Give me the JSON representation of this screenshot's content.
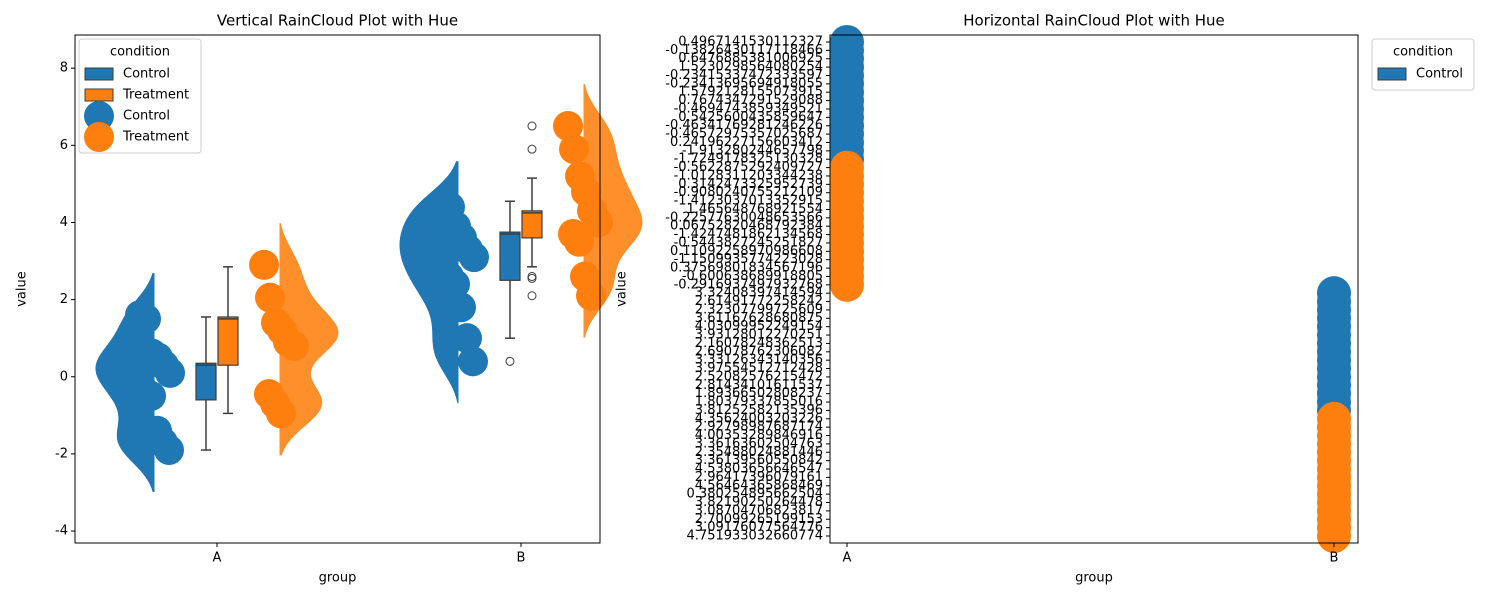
{
  "chart_data": [
    {
      "type": "raincloud",
      "title": "Vertical RainCloud Plot with Hue",
      "xlabel": "group",
      "ylabel": "value",
      "categories": [
        "A",
        "B"
      ],
      "ylim": [
        -4.31,
        8.86
      ],
      "yticks": [
        -4,
        -2,
        0,
        2,
        4,
        6,
        8
      ],
      "legend_title": "condition",
      "legend_loc": "upper left",
      "legend_entries": [
        {
          "label": "Control",
          "marker": "patch"
        },
        {
          "label": "Treatment",
          "marker": "patch"
        },
        {
          "label": "Control",
          "marker": "point"
        },
        {
          "label": "Treatment",
          "marker": "point"
        }
      ],
      "series": [
        {
          "name": "Control",
          "color": "#1f77b4",
          "values": [
            [
              1.6,
              1.5,
              0.6,
              0.5,
              0.3,
              0.1,
              -0.4,
              -0.5,
              -1.4,
              -1.7,
              -1.9
            ],
            [
              4.5,
              4.4,
              3.9,
              3.6,
              3.3,
              3.1,
              2.6,
              2.4,
              1.8,
              1.0,
              0.4
            ]
          ],
          "box": [
            {
              "whislo": -1.9,
              "q1": -0.6,
              "med": 0.3,
              "q3": 0.35,
              "whishi": 1.55,
              "fliers": []
            },
            {
              "whislo": 1.0,
              "q1": 2.5,
              "med": 3.7,
              "q3": 3.75,
              "whishi": 4.55,
              "fliers": [
                0.4
              ]
            }
          ]
        },
        {
          "name": "Treatment",
          "color": "#ff7f0e",
          "values": [
            [
              2.9,
              2.05,
              1.4,
              1.2,
              0.9,
              0.8,
              -0.45,
              -0.7,
              -0.95
            ],
            [
              6.5,
              5.9,
              5.2,
              4.8,
              4.3,
              4.0,
              3.7,
              3.5,
              2.6,
              2.1
            ]
          ],
          "box": [
            {
              "whislo": -0.95,
              "q1": 0.3,
              "med": 1.5,
              "q3": 1.55,
              "whishi": 2.85,
              "fliers": []
            },
            {
              "whislo": 2.85,
              "q1": 3.6,
              "med": 4.25,
              "q3": 4.3,
              "whishi": 5.15,
              "fliers": [
                6.5,
                5.9,
                2.6,
                2.55,
                2.1
              ]
            }
          ]
        }
      ]
    },
    {
      "type": "strip",
      "title": "Horizontal RainCloud Plot with Hue",
      "xlabel": "group",
      "ylabel": "value",
      "categories": [
        "A",
        "B"
      ],
      "ycategories": [
        0.4967141530112327,
        -0.13826430117118466,
        0.6476885381006925,
        1.5230298564080254,
        -0.23415337472333597,
        -0.23413695694918055,
        1.5792128155073915,
        0.7674347291529088,
        -0.4694743859349521,
        0.5425600435859647,
        -0.46341769281246226,
        -0.46572975357025687,
        0.24196227156603412,
        -1.913280244657798,
        -1.7249178325130328,
        -0.5622875292409727,
        -1.0128311203344238,
        0.3142473325952739,
        -0.9080240755212109,
        -1.4123037013352915,
        1.465648768921554,
        -0.22577630048653566,
        0.06752820468792384,
        -1.4247481862134568,
        -0.5443827245251827,
        0.11092258970986608,
        -1.1509935774223028,
        0.37569801834567196,
        -0.600638689918805,
        -0.2916937497932768,
        3.32408397414594,
        2.61491772258242,
        2.32307799725609,
        3.61167628680875,
        4.03099952249154,
        3.93128012270251,
        2.16078248362513,
        2.69078762306082,
        3.33126343140356,
        3.97554512712428,
        2.52082576215472,
        2.81434101611537,
        1.89366502808237,
        1.80379337855016,
        3.81252582135396,
        4.35624003203226,
        2.92798987687174,
        4.00353289846916,
        3.36163602504763,
        2.35488024881446,
        3.36139560550842,
        4.53803656646547,
        2.96417396079161,
        4.56464365868469,
        0.380254895662504,
        3.82190250264478,
        3.08704706823817,
        2.70099265199153,
        3.09176077564776,
        4.751933032660774
      ],
      "legend_title": "condition",
      "legend_loc": "outside upper right",
      "legend_entries": [
        {
          "label": "Control",
          "marker": "patch"
        }
      ],
      "series": [
        {
          "name": "Control",
          "color": "#1f77b4",
          "values": [
            [
              0.4967141530112327,
              -0.13826430117118466,
              0.6476885381006925,
              1.5230298564080254,
              -0.23415337472333597,
              -0.23413695694918055,
              1.5792128155073915,
              0.7674347291529088,
              -0.4694743859349521,
              0.5425600435859647,
              -0.46341769281246226,
              -0.46572975357025687,
              0.24196227156603412,
              -1.913280244657798,
              -1.7249178325130328
            ],
            [
              3.32408397414594,
              2.61491772258242,
              2.32307799725609,
              3.61167628680875,
              4.03099952249154,
              3.93128012270251,
              2.16078248362513,
              2.69078762306082,
              3.33126343140356,
              3.97554512712428,
              2.52082576215472,
              2.81434101611537,
              1.89366502808237,
              1.80379337855016,
              3.81252582135396
            ]
          ]
        },
        {
          "name": "Treatment",
          "color": "#ff7f0e",
          "values": [
            [
              -0.5622875292409727,
              -1.0128311203344238,
              0.3142473325952739,
              -0.9080240755212109,
              -1.4123037013352915,
              1.465648768921554,
              -0.22577630048653566,
              0.06752820468792384,
              -1.4247481862134568,
              -0.5443827245251827,
              0.11092258970986608,
              -1.1509935774223028,
              0.37569801834567196,
              -0.600638689918805,
              -0.2916937497932768
            ],
            [
              4.35624003203226,
              2.92798987687174,
              4.00353289846916,
              3.36163602504763,
              2.35488024881446,
              3.36139560550842,
              4.53803656646547,
              2.96417396079161,
              4.56464365868469,
              0.380254895662504,
              3.82190250264478,
              3.08704706823817,
              2.70099265199153,
              3.09176077564776,
              4.751933032660774
            ]
          ]
        }
      ]
    }
  ]
}
